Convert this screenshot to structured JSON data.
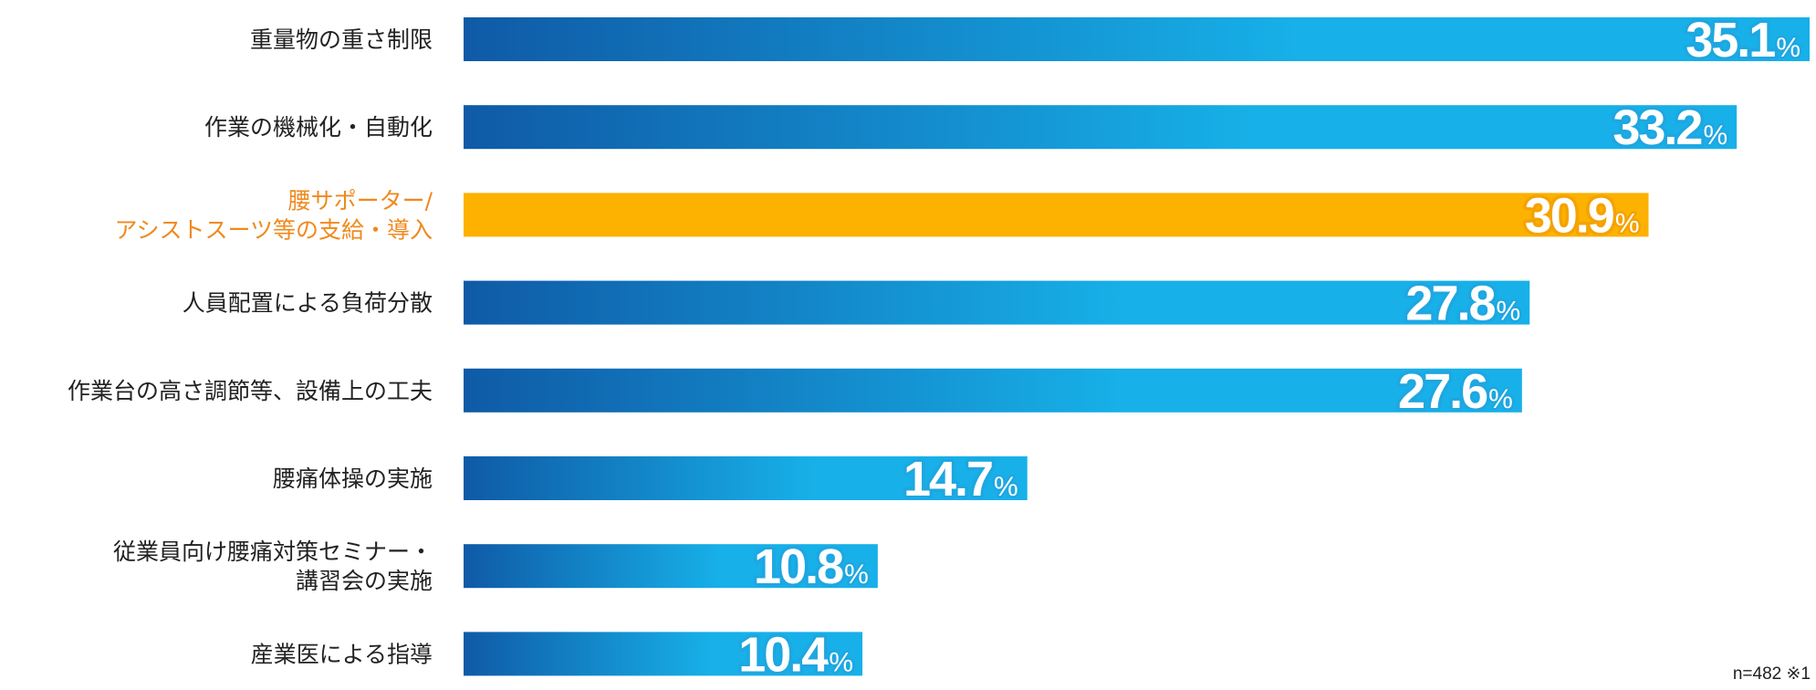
{
  "chart_data": {
    "type": "bar",
    "orientation": "horizontal",
    "categories": [
      [
        "重量物の重さ制限"
      ],
      [
        "作業の機械化・自動化"
      ],
      [
        "腰サポーター/",
        "アシストスーツ等の支給・導入"
      ],
      [
        "人員配置による負荷分散"
      ],
      [
        "作業台の高さ調節等、設備上の工夫"
      ],
      [
        "腰痛体操の実施"
      ],
      [
        "従業員向け腰痛対策セミナー・",
        "講習会の実施"
      ],
      [
        "産業医による指導"
      ]
    ],
    "values": [
      35.1,
      33.2,
      30.9,
      27.8,
      27.6,
      14.7,
      10.8,
      10.4
    ],
    "value_labels": [
      "35.1",
      "33.2",
      "30.9",
      "27.8",
      "27.6",
      "14.7",
      "10.8",
      "10.4"
    ],
    "unit": "%",
    "highlight_index": 2,
    "xlim": [
      0,
      35.1
    ],
    "grid": false,
    "colors": {
      "gradient_start": "#0f5aa6",
      "gradient_end": "#17b0e8",
      "highlight_bar": "#fdb100",
      "highlight_label": "#f0891d",
      "label": "#222222",
      "value_stroke": "#1ea7e1",
      "value_stroke_highlight": "#f4a300"
    },
    "note": "n=482 ※1"
  }
}
